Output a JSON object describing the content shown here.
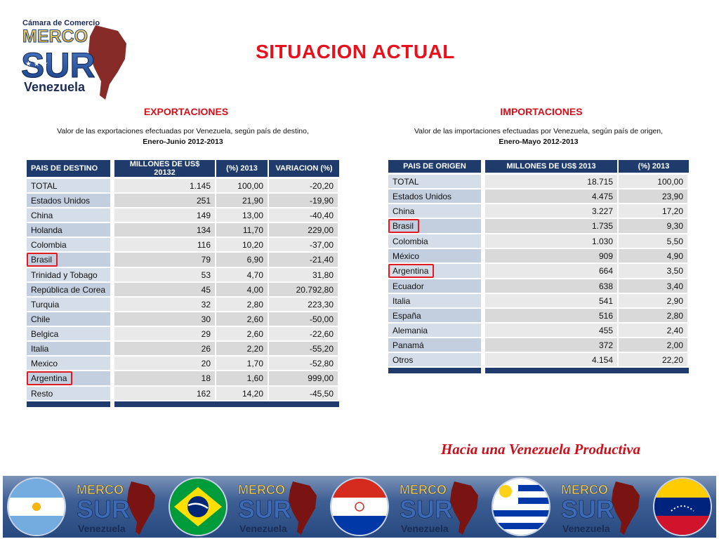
{
  "logo": {
    "top_text": "Cámara de Comercio",
    "merco": "MERCO",
    "sur": "SUR",
    "country": "Venezuela"
  },
  "title": "SITUACION ACTUAL",
  "exportaciones": {
    "heading": "EXPORTACIONES",
    "subtitle_line1": "Valor de las exportaciones efectuadas por Venezuela, según país de destino,",
    "subtitle_line2": "Enero-Junio 2012-2013",
    "headers": [
      "PAIS DE DESTINO",
      "MILLONES DE US$ 20132",
      "(%) 2013",
      "VARIACION (%)"
    ],
    "rows": [
      {
        "country": "TOTAL",
        "millones": "1.145",
        "pct": "100,00",
        "var": "-20,20",
        "highlight": false
      },
      {
        "country": "Estados Unidos",
        "millones": "251",
        "pct": "21,90",
        "var": "-19,90",
        "highlight": false
      },
      {
        "country": "China",
        "millones": "149",
        "pct": "13,00",
        "var": "-40,40",
        "highlight": false
      },
      {
        "country": "Holanda",
        "millones": "134",
        "pct": "11,70",
        "var": "229,00",
        "highlight": false
      },
      {
        "country": "Colombia",
        "millones": "116",
        "pct": "10,20",
        "var": "-37,00",
        "highlight": false
      },
      {
        "country": "Brasil",
        "millones": "79",
        "pct": "6,90",
        "var": "-21,40",
        "highlight": true
      },
      {
        "country": "Trinidad y Tobago",
        "millones": "53",
        "pct": "4,70",
        "var": "31,80",
        "highlight": false
      },
      {
        "country": "República de Corea",
        "millones": "45",
        "pct": "4,00",
        "var": "20.792,80",
        "highlight": false
      },
      {
        "country": "Turquia",
        "millones": "32",
        "pct": "2,80",
        "var": "223,30",
        "highlight": false
      },
      {
        "country": "Chile",
        "millones": "30",
        "pct": "2,60",
        "var": "-50,00",
        "highlight": false
      },
      {
        "country": "Belgica",
        "millones": "29",
        "pct": "2,60",
        "var": "-22,60",
        "highlight": false
      },
      {
        "country": "Italia",
        "millones": "26",
        "pct": "2,20",
        "var": "-55,20",
        "highlight": false
      },
      {
        "country": "Mexico",
        "millones": "20",
        "pct": "1,70",
        "var": "-52,80",
        "highlight": false
      },
      {
        "country": "Argentina",
        "millones": "18",
        "pct": "1,60",
        "var": "999,00",
        "highlight": true
      },
      {
        "country": "Resto",
        "millones": "162",
        "pct": "14,20",
        "var": "-45,50",
        "highlight": false
      }
    ]
  },
  "importaciones": {
    "heading": "IMPORTACIONES",
    "subtitle_line1": "Valor de las importaciones efectuadas por Venezuela, según país de origen,",
    "subtitle_line2": "Enero-Mayo 2012-2013",
    "headers": [
      "PAIS DE ORIGEN",
      "MILLONES DE US$ 2013",
      "(%) 2013"
    ],
    "rows": [
      {
        "country": "TOTAL",
        "millones": "18.715",
        "pct": "100,00",
        "highlight": false
      },
      {
        "country": "Estados Unidos",
        "millones": "4.475",
        "pct": "23,90",
        "highlight": false
      },
      {
        "country": "China",
        "millones": "3.227",
        "pct": "17,20",
        "highlight": false
      },
      {
        "country": "Brasil",
        "millones": "1.735",
        "pct": "9,30",
        "highlight": true
      },
      {
        "country": "Colombia",
        "millones": "1.030",
        "pct": "5,50",
        "highlight": false
      },
      {
        "country": "México",
        "millones": "909",
        "pct": "4,90",
        "highlight": false
      },
      {
        "country": "Argentina",
        "millones": "664",
        "pct": "3,50",
        "highlight": true
      },
      {
        "country": "Ecuador",
        "millones": "638",
        "pct": "3,40",
        "highlight": false
      },
      {
        "country": "Italia",
        "millones": "541",
        "pct": "2,90",
        "highlight": false
      },
      {
        "country": "España",
        "millones": "516",
        "pct": "2,80",
        "highlight": false
      },
      {
        "country": "Alemania",
        "millones": "455",
        "pct": "2,40",
        "highlight": false
      },
      {
        "country": "Panamá",
        "millones": "372",
        "pct": "2,00",
        "highlight": false
      },
      {
        "country": "Otros",
        "millones": "4.154",
        "pct": "22,20",
        "highlight": false
      }
    ]
  },
  "slogan": "Hacia una Venezuela Productiva",
  "banner": {
    "items": [
      "argentina-flag",
      "mercosur-logo",
      "brazil-flag",
      "mercosur-logo",
      "paraguay-flag",
      "mercosur-logo",
      "uruguay-flag",
      "mercosur-logo",
      "venezuela-flag"
    ]
  },
  "colors": {
    "title_red": "#e8101c",
    "header_navy": "#1e3b6b",
    "highlight_red": "#e11b22"
  }
}
